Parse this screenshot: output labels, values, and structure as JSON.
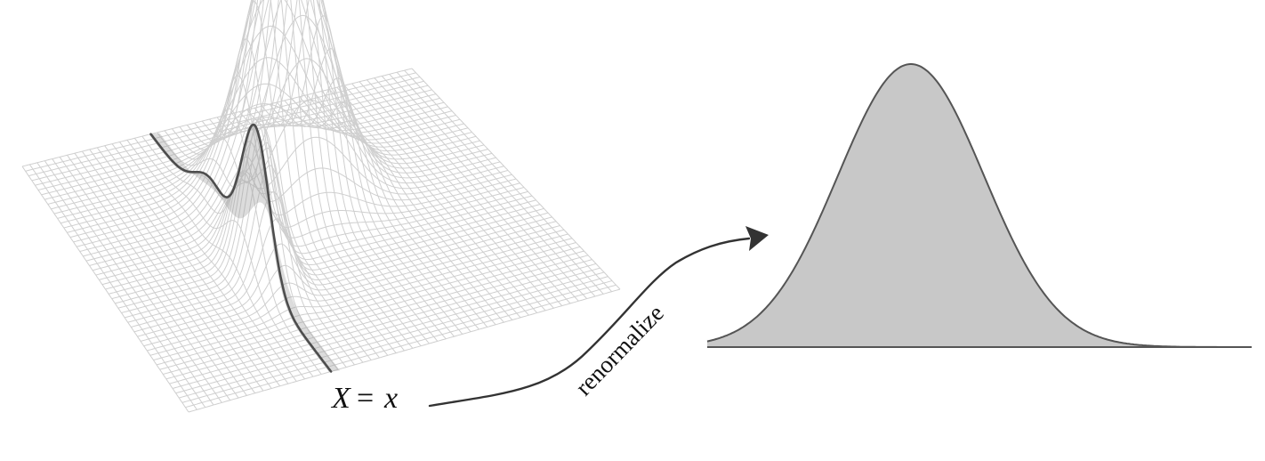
{
  "labels": {
    "condition_var": "X",
    "condition_eq": "=",
    "condition_val": "x",
    "arrow_label": "renormalize"
  },
  "colors": {
    "mesh": "#cfcfcf",
    "slice": "#4d4d4d",
    "slice_shade": "#9a9a9a",
    "density_fill": "#c8c8c8",
    "density_line": "#555555",
    "arrow": "#333333"
  }
}
